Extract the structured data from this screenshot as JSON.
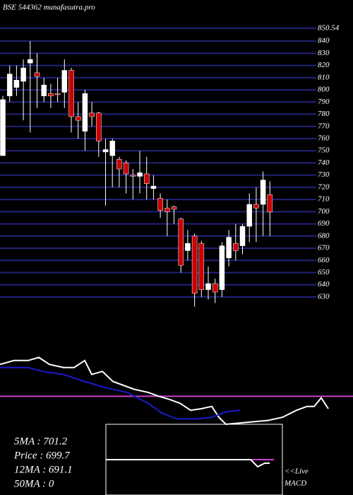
{
  "chart_data": [
    {
      "type": "candlestick",
      "title": "BSE 544362 munafasutra.pro",
      "up_color": "#ffffff",
      "down_color": "#cc0000",
      "grid_color": "#22227a",
      "grid": true,
      "ylim": [
        623,
        850.54
      ],
      "yticks": [
        850.54,
        840,
        830,
        820,
        810,
        800,
        790,
        780,
        770,
        760,
        750,
        740,
        730,
        720,
        710,
        700,
        690,
        680,
        670,
        660,
        650,
        640,
        630
      ],
      "series": {
        "open": [
          746,
          795,
          802,
          807,
          822,
          814,
          795,
          797,
          797,
          798,
          816,
          778,
          766,
          781,
          781,
          749,
          746,
          743,
          740,
          730,
          729,
          731,
          719,
          711,
          703,
          704,
          694,
          668,
          680,
          674,
          636,
          641,
          636,
          662,
          674,
          672,
          688,
          706,
          706,
          714
        ],
        "high": [
          795,
          820,
          820,
          825,
          840,
          830,
          810,
          805,
          810,
          825,
          818,
          790,
          800,
          790,
          782,
          760,
          760,
          745,
          742,
          735,
          750,
          745,
          730,
          715,
          710,
          705,
          695,
          685,
          682,
          676,
          655,
          645,
          675,
          685,
          690,
          690,
          715,
          720,
          733,
          725
        ],
        "low": [
          746,
          790,
          795,
          775,
          765,
          785,
          790,
          785,
          790,
          785,
          765,
          760,
          750,
          770,
          745,
          705,
          720,
          720,
          715,
          710,
          715,
          710,
          710,
          695,
          680,
          690,
          650,
          660,
          622,
          630,
          628,
          625,
          630,
          655,
          660,
          665,
          675,
          675,
          680,
          680
        ],
        "close": [
          792,
          813,
          808,
          818,
          825,
          811,
          804,
          795,
          796,
          816,
          778,
          775,
          797,
          778,
          758,
          751,
          758,
          735,
          731,
          729,
          732,
          723,
          721,
          701,
          700,
          702,
          656,
          674,
          633,
          636,
          641,
          634,
          672,
          679,
          668,
          688,
          706,
          703,
          726,
          699.7
        ]
      }
    },
    {
      "type": "line",
      "xlim": [
        0,
        500
      ],
      "ylim": [
        0,
        100
      ],
      "reference": 36,
      "reference_color": "#cc44cc",
      "series": [
        {
          "name": null,
          "color": "#ffffff",
          "x": [
            0,
            20,
            40,
            55,
            70,
            90,
            105,
            120,
            130,
            145,
            160,
            175,
            190,
            210,
            225,
            240,
            255,
            270,
            285,
            300,
            310,
            320,
            380,
            400,
            420,
            435,
            445,
            455,
            465
          ],
          "values": [
            77,
            82,
            82,
            86,
            77,
            73,
            73,
            82,
            64,
            68,
            55,
            50,
            45,
            41,
            36,
            32,
            27,
            18,
            20,
            23,
            9,
            0,
            5,
            9,
            18,
            23,
            23,
            34,
            20
          ]
        },
        {
          "name": null,
          "color": "#1a1acc",
          "x": [
            0,
            20,
            40,
            60,
            90,
            120,
            150,
            180,
            210,
            230,
            250,
            280,
            300,
            320,
            340
          ],
          "values": [
            73,
            73,
            73,
            68,
            64,
            55,
            47,
            41,
            27,
            14,
            7,
            7,
            9,
            16,
            18
          ]
        }
      ],
      "annotations": [
        "5MA : 701.2",
        "Price  : 699.7",
        "12MA : 691.1",
        "50MA : 0"
      ]
    },
    {
      "type": "line",
      "title": "<<Live",
      "subtitle": "MACD",
      "xlim": [
        150,
        400
      ],
      "ylim": [
        -50,
        50
      ],
      "series": [
        {
          "name": null,
          "color": "#ffffff",
          "x": [
            150,
            355,
            365,
            375,
            382
          ],
          "values": [
            0,
            0,
            -10,
            -5,
            -5
          ]
        }
      ]
    }
  ]
}
